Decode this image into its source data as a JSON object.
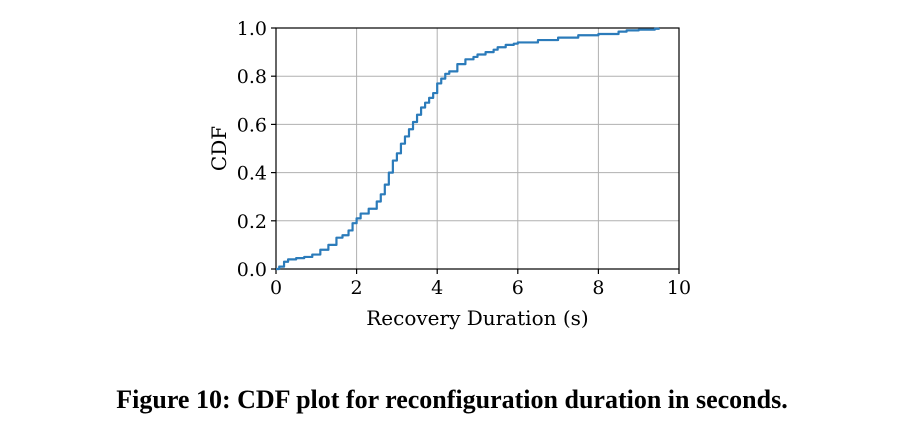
{
  "caption": "Figure 10: CDF plot for reconfiguration duration in seconds.",
  "colors": {
    "line": "#2b7bba",
    "grid": "#b0b0b0",
    "axis": "#000000"
  },
  "chart_data": {
    "type": "line",
    "title": "",
    "xlabel": "Recovery Duration (s)",
    "ylabel": "CDF",
    "xlim": [
      0,
      10
    ],
    "ylim": [
      0,
      1
    ],
    "xticks": [
      "0",
      "2",
      "4",
      "6",
      "8",
      "10"
    ],
    "yticks": [
      "0.0",
      "0.2",
      "0.4",
      "0.6",
      "0.8",
      "1.0"
    ],
    "grid": true,
    "legend": "none",
    "series": [
      {
        "x": [
          0.0,
          0.08,
          0.2,
          0.3,
          0.5,
          0.7,
          0.9,
          1.1,
          1.3,
          1.5,
          1.65,
          1.8,
          1.9,
          2.0,
          2.1,
          2.3,
          2.5,
          2.6,
          2.7,
          2.8,
          2.9,
          3.0,
          3.1,
          3.2,
          3.3,
          3.4,
          3.5,
          3.6,
          3.7,
          3.8,
          3.9,
          4.0,
          4.1,
          4.2,
          4.3,
          4.5,
          4.7,
          4.9,
          5.0,
          5.2,
          5.4,
          5.5,
          5.7,
          5.9,
          6.0,
          6.5,
          7.0,
          7.5,
          8.0,
          8.5,
          8.7,
          9.0,
          9.4,
          9.5
        ],
        "y": [
          0.0,
          0.01,
          0.03,
          0.04,
          0.045,
          0.05,
          0.06,
          0.08,
          0.1,
          0.13,
          0.14,
          0.16,
          0.19,
          0.21,
          0.23,
          0.25,
          0.28,
          0.31,
          0.35,
          0.4,
          0.45,
          0.48,
          0.52,
          0.55,
          0.58,
          0.61,
          0.64,
          0.67,
          0.69,
          0.71,
          0.73,
          0.77,
          0.79,
          0.81,
          0.82,
          0.85,
          0.87,
          0.88,
          0.89,
          0.9,
          0.91,
          0.92,
          0.93,
          0.935,
          0.94,
          0.95,
          0.96,
          0.97,
          0.975,
          0.985,
          0.99,
          0.993,
          0.997,
          1.0
        ]
      }
    ]
  }
}
